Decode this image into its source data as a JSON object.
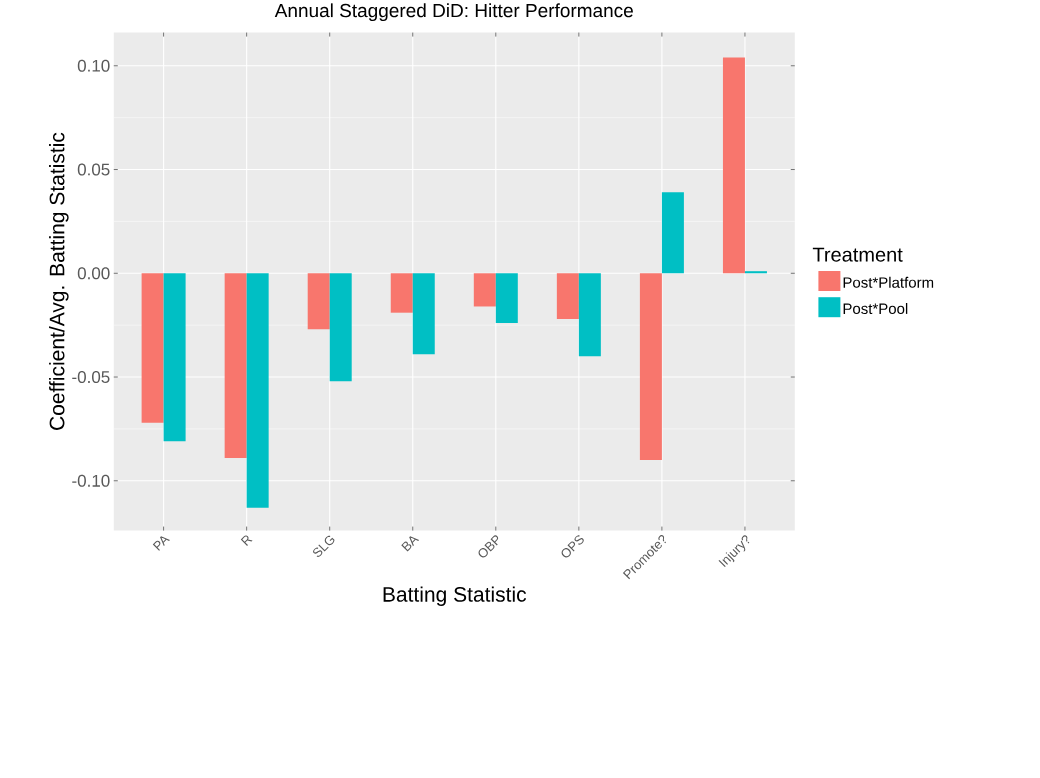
{
  "chart_data": {
    "type": "bar",
    "title": "Annual Staggered DiD: Hitter Performance",
    "xlabel": "Batting Statistic",
    "ylabel": "Coefficient/Avg. Batting Statistic",
    "legend_title": "Treatment",
    "categories": [
      "PA",
      "R",
      "SLG",
      "BA",
      "OBP",
      "OPS",
      "Promote?",
      "Injury?"
    ],
    "series": [
      {
        "name": "Post*Platform",
        "color": "#f8766d",
        "values": [
          -0.072,
          -0.089,
          -0.027,
          -0.019,
          -0.016,
          -0.022,
          -0.09,
          0.104
        ]
      },
      {
        "name": "Post*Pool",
        "color": "#00bfc4",
        "values": [
          -0.081,
          -0.113,
          -0.052,
          -0.039,
          -0.024,
          -0.04,
          0.039,
          0.001
        ]
      }
    ],
    "ylim": [
      -0.124,
      0.116
    ],
    "yticks": [
      {
        "value": -0.1,
        "label": "-0.10"
      },
      {
        "value": -0.05,
        "label": "-0.05"
      },
      {
        "value": 0,
        "label": "0.00"
      },
      {
        "value": 0.05,
        "label": "0.05"
      },
      {
        "value": 0.1,
        "label": "0.10"
      }
    ],
    "grid": true,
    "legend": "right"
  }
}
